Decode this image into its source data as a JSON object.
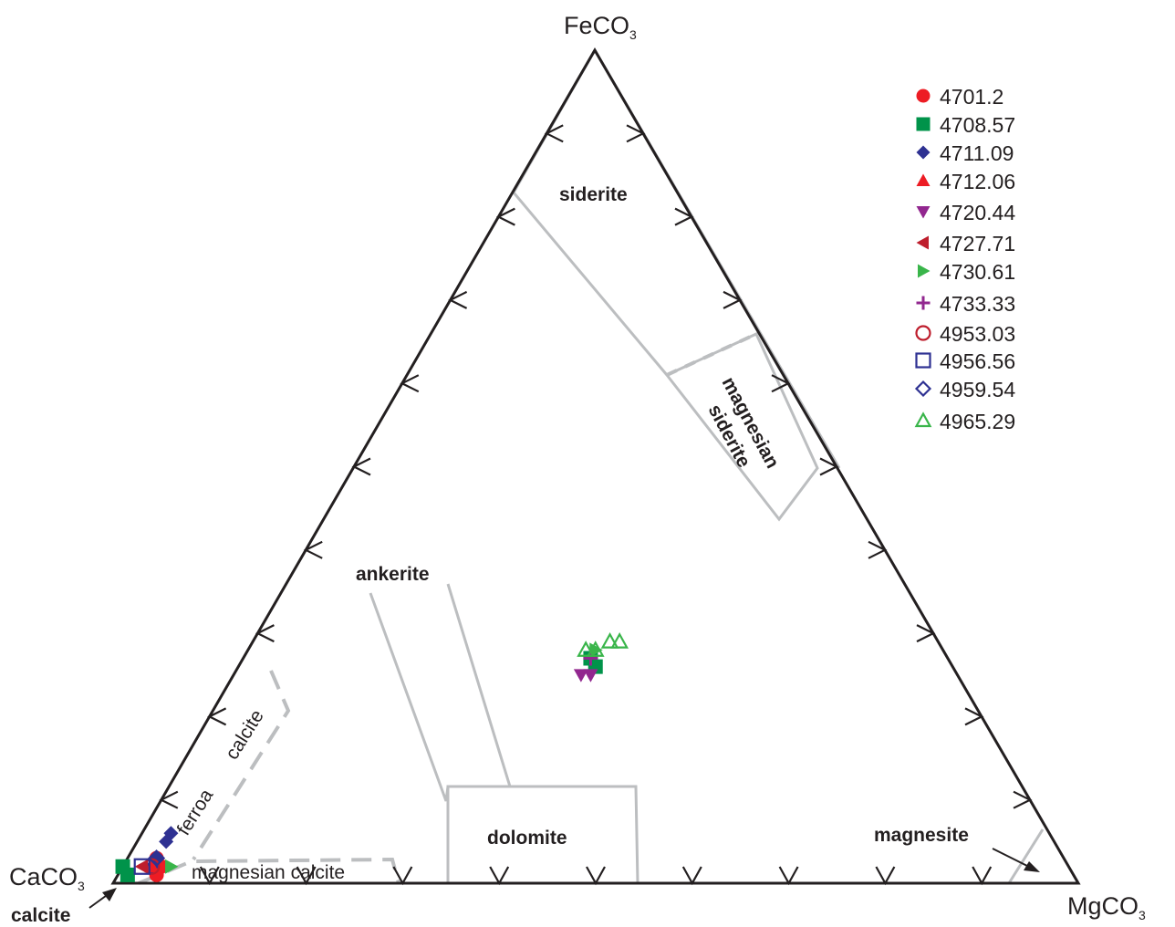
{
  "chart_data": {
    "type": "ternary",
    "vertices": {
      "top": "FeCO3",
      "left": "CaCO3",
      "right": "MgCO3"
    },
    "vertex_text": {
      "top": {
        "main": "FeCO",
        "sub": "3"
      },
      "left": {
        "main": "CaCO",
        "sub": "3"
      },
      "right": {
        "main": "MgCO",
        "sub": "3"
      }
    },
    "tick_interval": 0.1,
    "fields": [
      {
        "name": "siderite",
        "style": "solid"
      },
      {
        "name": "magnesian siderite",
        "label_lines": [
          "magnesian",
          "siderite"
        ],
        "style": "solid"
      },
      {
        "name": "ankerite",
        "style": "solid"
      },
      {
        "name": "dolomite",
        "style": "solid"
      },
      {
        "name": "magnesite",
        "style": "solid"
      },
      {
        "name": "ferroan calcite",
        "label_lines": [
          "ferroa",
          "calcite"
        ],
        "style": "dashed"
      },
      {
        "name": "magnesian calcite",
        "style": "dashed"
      },
      {
        "name": "calcite",
        "style": "arrow"
      }
    ],
    "legend_position": "top-right",
    "series": [
      {
        "name": "4701.2",
        "marker": "circle",
        "filled": true,
        "color": "#ed1c24",
        "points": [
          {
            "Fe": 0.03,
            "Mg": 0.03,
            "Ca": 0.94
          },
          {
            "Fe": 0.02,
            "Mg": 0.04,
            "Ca": 0.94
          },
          {
            "Fe": 0.01,
            "Mg": 0.04,
            "Ca": 0.95
          }
        ]
      },
      {
        "name": "4708.57",
        "marker": "square",
        "filled": true,
        "color": "#00934a",
        "points": [
          {
            "Fe": 0.02,
            "Mg": 0.0,
            "Ca": 0.98
          },
          {
            "Fe": 0.01,
            "Mg": 0.01,
            "Ca": 0.98
          },
          {
            "Fe": 0.26,
            "Mg": 0.37,
            "Ca": 0.37
          },
          {
            "Fe": 0.27,
            "Mg": 0.36,
            "Ca": 0.37
          }
        ]
      },
      {
        "name": "4711.09",
        "marker": "diamond",
        "filled": true,
        "color": "#2e3192",
        "points": [
          {
            "Fe": 0.06,
            "Mg": 0.03,
            "Ca": 0.91
          },
          {
            "Fe": 0.05,
            "Mg": 0.03,
            "Ca": 0.92
          },
          {
            "Fe": 0.02,
            "Mg": 0.03,
            "Ca": 0.95
          },
          {
            "Fe": 0.03,
            "Mg": 0.03,
            "Ca": 0.94
          }
        ]
      },
      {
        "name": "4712.06",
        "marker": "triangle-up",
        "filled": true,
        "color": "#ed1c24",
        "points": [
          {
            "Fe": 0.02,
            "Mg": 0.03,
            "Ca": 0.95
          }
        ]
      },
      {
        "name": "4720.44",
        "marker": "triangle-down",
        "filled": true,
        "color": "#92278f",
        "points": [
          {
            "Fe": 0.25,
            "Mg": 0.36,
            "Ca": 0.39
          },
          {
            "Fe": 0.25,
            "Mg": 0.37,
            "Ca": 0.38
          }
        ]
      },
      {
        "name": "4727.71",
        "marker": "triangle-left",
        "filled": true,
        "color": "#be1e2d",
        "points": [
          {
            "Fe": 0.02,
            "Mg": 0.02,
            "Ca": 0.96
          }
        ]
      },
      {
        "name": "4730.61",
        "marker": "triangle-right",
        "filled": true,
        "color": "#39b54a",
        "points": [
          {
            "Fe": 0.02,
            "Mg": 0.05,
            "Ca": 0.93
          },
          {
            "Fe": 0.28,
            "Mg": 0.36,
            "Ca": 0.36
          }
        ]
      },
      {
        "name": "4733.33",
        "marker": "plus",
        "filled": true,
        "color": "#92278f",
        "points": [
          {
            "Fe": 0.27,
            "Mg": 0.36,
            "Ca": 0.37
          }
        ]
      },
      {
        "name": "4953.03",
        "marker": "circle",
        "filled": false,
        "color": "#be1e2d",
        "points": [
          {
            "Fe": 0.02,
            "Mg": 0.03,
            "Ca": 0.95
          }
        ]
      },
      {
        "name": "4956.56",
        "marker": "square",
        "filled": false,
        "color": "#2e3192",
        "points": [
          {
            "Fe": 0.02,
            "Mg": 0.02,
            "Ca": 0.96
          }
        ]
      },
      {
        "name": "4959.54",
        "marker": "diamond",
        "filled": false,
        "color": "#2e3192",
        "points": [
          {
            "Fe": 0.03,
            "Mg": 0.03,
            "Ca": 0.94
          }
        ]
      },
      {
        "name": "4965.29",
        "marker": "triangle-up",
        "filled": false,
        "color": "#39b54a",
        "points": [
          {
            "Fe": 0.29,
            "Mg": 0.38,
            "Ca": 0.33
          },
          {
            "Fe": 0.29,
            "Mg": 0.37,
            "Ca": 0.34
          },
          {
            "Fe": 0.28,
            "Mg": 0.36,
            "Ca": 0.36
          },
          {
            "Fe": 0.28,
            "Mg": 0.35,
            "Ca": 0.37
          }
        ]
      }
    ]
  }
}
